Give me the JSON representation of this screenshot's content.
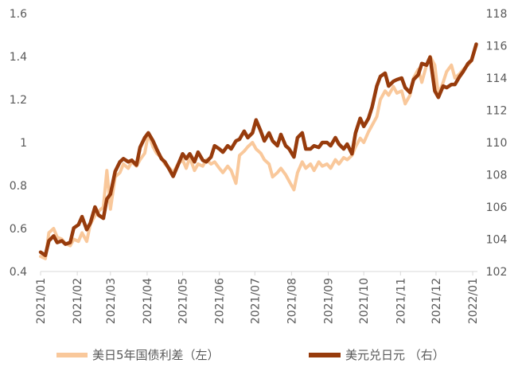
{
  "chart_data": {
    "type": "line",
    "title": "",
    "x_tick_labels": [
      "2021/01",
      "2021/02",
      "2021/03",
      "2021/04",
      "2021/05",
      "2021/06",
      "2021/07",
      "2021/08",
      "2021/09",
      "2021/10",
      "2021/11",
      "2021/12",
      "2022/01"
    ],
    "y_left": {
      "range": [
        0.4,
        1.6
      ],
      "ticks": [
        "0.4",
        "0.6",
        "0.8",
        "1",
        "1.2",
        "1.4",
        "1.6"
      ]
    },
    "y_right": {
      "range": [
        102,
        118
      ],
      "ticks": [
        "102",
        "104",
        "106",
        "108",
        "110",
        "112",
        "114",
        "116",
        "118"
      ]
    },
    "grid": false,
    "legend_position": "bottom",
    "series": [
      {
        "name": "美日5年国债利差（左）",
        "axis": "left",
        "color": "#F9C89B",
        "points": [
          [
            "2021-01-01",
            0.47
          ],
          [
            "2021-01-05",
            0.46
          ],
          [
            "2021-01-08",
            0.58
          ],
          [
            "2021-01-12",
            0.6
          ],
          [
            "2021-01-15",
            0.56
          ],
          [
            "2021-01-19",
            0.55
          ],
          [
            "2021-01-22",
            0.53
          ],
          [
            "2021-01-26",
            0.52
          ],
          [
            "2021-01-29",
            0.55
          ],
          [
            "2021-02-02",
            0.54
          ],
          [
            "2021-02-05",
            0.58
          ],
          [
            "2021-02-09",
            0.54
          ],
          [
            "2021-02-12",
            0.62
          ],
          [
            "2021-02-16",
            0.66
          ],
          [
            "2021-02-19",
            0.68
          ],
          [
            "2021-02-23",
            0.7
          ],
          [
            "2021-02-26",
            0.87
          ],
          [
            "2021-03-01",
            0.69
          ],
          [
            "2021-03-05",
            0.84
          ],
          [
            "2021-03-09",
            0.86
          ],
          [
            "2021-03-12",
            0.9
          ],
          [
            "2021-03-16",
            0.88
          ],
          [
            "2021-03-19",
            0.91
          ],
          [
            "2021-03-23",
            0.89
          ],
          [
            "2021-03-26",
            0.92
          ],
          [
            "2021-03-30",
            0.95
          ],
          [
            "2021-04-02",
            1.04
          ],
          [
            "2021-04-06",
            0.98
          ],
          [
            "2021-04-09",
            0.95
          ],
          [
            "2021-04-13",
            0.93
          ],
          [
            "2021-04-16",
            0.9
          ],
          [
            "2021-04-20",
            0.88
          ],
          [
            "2021-04-23",
            0.86
          ],
          [
            "2021-04-27",
            0.9
          ],
          [
            "2021-05-01",
            0.92
          ],
          [
            "2021-05-04",
            0.88
          ],
          [
            "2021-05-07",
            0.93
          ],
          [
            "2021-05-11",
            0.87
          ],
          [
            "2021-05-14",
            0.9
          ],
          [
            "2021-05-18",
            0.89
          ],
          [
            "2021-05-21",
            0.92
          ],
          [
            "2021-05-25",
            0.9
          ],
          [
            "2021-05-28",
            0.91
          ],
          [
            "2021-06-01",
            0.88
          ],
          [
            "2021-06-04",
            0.86
          ],
          [
            "2021-06-08",
            0.89
          ],
          [
            "2021-06-11",
            0.87
          ],
          [
            "2021-06-15",
            0.81
          ],
          [
            "2021-06-18",
            0.94
          ],
          [
            "2021-06-22",
            0.96
          ],
          [
            "2021-06-25",
            0.98
          ],
          [
            "2021-06-29",
            1.0
          ],
          [
            "2021-07-02",
            0.97
          ],
          [
            "2021-07-06",
            0.95
          ],
          [
            "2021-07-09",
            0.92
          ],
          [
            "2021-07-13",
            0.9
          ],
          [
            "2021-07-16",
            0.84
          ],
          [
            "2021-07-20",
            0.86
          ],
          [
            "2021-07-23",
            0.88
          ],
          [
            "2021-07-27",
            0.85
          ],
          [
            "2021-07-30",
            0.82
          ],
          [
            "2021-08-03",
            0.78
          ],
          [
            "2021-08-06",
            0.86
          ],
          [
            "2021-08-10",
            0.91
          ],
          [
            "2021-08-13",
            0.88
          ],
          [
            "2021-08-17",
            0.9
          ],
          [
            "2021-08-20",
            0.87
          ],
          [
            "2021-08-24",
            0.91
          ],
          [
            "2021-08-27",
            0.89
          ],
          [
            "2021-08-31",
            0.9
          ],
          [
            "2021-09-03",
            0.88
          ],
          [
            "2021-09-07",
            0.92
          ],
          [
            "2021-09-10",
            0.9
          ],
          [
            "2021-09-14",
            0.93
          ],
          [
            "2021-09-17",
            0.92
          ],
          [
            "2021-09-21",
            0.94
          ],
          [
            "2021-09-24",
            0.98
          ],
          [
            "2021-09-28",
            1.02
          ],
          [
            "2021-10-01",
            1.0
          ],
          [
            "2021-10-05",
            1.05
          ],
          [
            "2021-10-08",
            1.08
          ],
          [
            "2021-10-12",
            1.12
          ],
          [
            "2021-10-15",
            1.2
          ],
          [
            "2021-10-19",
            1.24
          ],
          [
            "2021-10-22",
            1.22
          ],
          [
            "2021-10-26",
            1.26
          ],
          [
            "2021-10-29",
            1.23
          ],
          [
            "2021-11-02",
            1.24
          ],
          [
            "2021-11-05",
            1.18
          ],
          [
            "2021-11-09",
            1.22
          ],
          [
            "2021-11-12",
            1.3
          ],
          [
            "2021-11-16",
            1.34
          ],
          [
            "2021-11-19",
            1.28
          ],
          [
            "2021-11-23",
            1.36
          ],
          [
            "2021-11-26",
            1.4
          ],
          [
            "2021-11-30",
            1.36
          ],
          [
            "2021-12-03",
            1.22
          ],
          [
            "2021-12-07",
            1.28
          ],
          [
            "2021-12-10",
            1.33
          ],
          [
            "2021-12-14",
            1.36
          ],
          [
            "2021-12-17",
            1.3
          ],
          [
            "2021-12-21",
            1.32
          ],
          [
            "2021-12-24",
            1.34
          ],
          [
            "2021-12-28",
            1.36
          ],
          [
            "2021-12-31",
            1.38
          ],
          [
            "2022-01-04",
            1.45
          ]
        ]
      },
      {
        "name": "美元兑日元 （右）",
        "axis": "right",
        "color": "#973B0C",
        "points": [
          [
            "2021-01-01",
            103.2
          ],
          [
            "2021-01-05",
            103.0
          ],
          [
            "2021-01-08",
            103.9
          ],
          [
            "2021-01-12",
            104.2
          ],
          [
            "2021-01-15",
            103.8
          ],
          [
            "2021-01-19",
            103.9
          ],
          [
            "2021-01-22",
            103.7
          ],
          [
            "2021-01-26",
            103.8
          ],
          [
            "2021-01-29",
            104.7
          ],
          [
            "2021-02-02",
            104.9
          ],
          [
            "2021-02-05",
            105.4
          ],
          [
            "2021-02-09",
            104.6
          ],
          [
            "2021-02-12",
            105.0
          ],
          [
            "2021-02-16",
            106.0
          ],
          [
            "2021-02-19",
            105.5
          ],
          [
            "2021-02-23",
            105.3
          ],
          [
            "2021-02-26",
            106.5
          ],
          [
            "2021-03-01",
            106.8
          ],
          [
            "2021-03-05",
            108.2
          ],
          [
            "2021-03-09",
            108.8
          ],
          [
            "2021-03-12",
            109.0
          ],
          [
            "2021-03-16",
            108.8
          ],
          [
            "2021-03-19",
            108.9
          ],
          [
            "2021-03-23",
            108.6
          ],
          [
            "2021-03-26",
            109.7
          ],
          [
            "2021-03-30",
            110.3
          ],
          [
            "2021-04-02",
            110.6
          ],
          [
            "2021-04-06",
            110.1
          ],
          [
            "2021-04-09",
            109.6
          ],
          [
            "2021-04-13",
            109.0
          ],
          [
            "2021-04-16",
            108.8
          ],
          [
            "2021-04-20",
            108.3
          ],
          [
            "2021-04-23",
            107.9
          ],
          [
            "2021-04-27",
            108.6
          ],
          [
            "2021-05-01",
            109.3
          ],
          [
            "2021-05-04",
            109.0
          ],
          [
            "2021-05-07",
            109.3
          ],
          [
            "2021-05-11",
            108.8
          ],
          [
            "2021-05-14",
            109.4
          ],
          [
            "2021-05-18",
            108.9
          ],
          [
            "2021-05-21",
            108.8
          ],
          [
            "2021-05-25",
            109.1
          ],
          [
            "2021-05-28",
            109.8
          ],
          [
            "2021-06-01",
            109.6
          ],
          [
            "2021-06-04",
            109.4
          ],
          [
            "2021-06-08",
            109.8
          ],
          [
            "2021-06-11",
            109.6
          ],
          [
            "2021-06-15",
            110.1
          ],
          [
            "2021-06-18",
            110.2
          ],
          [
            "2021-06-22",
            110.7
          ],
          [
            "2021-06-25",
            110.3
          ],
          [
            "2021-06-29",
            110.6
          ],
          [
            "2021-07-02",
            111.4
          ],
          [
            "2021-07-06",
            110.7
          ],
          [
            "2021-07-09",
            110.1
          ],
          [
            "2021-07-13",
            110.6
          ],
          [
            "2021-07-16",
            110.1
          ],
          [
            "2021-07-20",
            109.8
          ],
          [
            "2021-07-23",
            110.5
          ],
          [
            "2021-07-27",
            109.8
          ],
          [
            "2021-07-30",
            109.6
          ],
          [
            "2021-08-03",
            109.1
          ],
          [
            "2021-08-06",
            110.3
          ],
          [
            "2021-08-10",
            110.6
          ],
          [
            "2021-08-13",
            109.6
          ],
          [
            "2021-08-17",
            109.6
          ],
          [
            "2021-08-20",
            109.8
          ],
          [
            "2021-08-24",
            109.7
          ],
          [
            "2021-08-27",
            110.0
          ],
          [
            "2021-08-31",
            110.0
          ],
          [
            "2021-09-03",
            109.8
          ],
          [
            "2021-09-07",
            110.3
          ],
          [
            "2021-09-10",
            109.9
          ],
          [
            "2021-09-14",
            109.6
          ],
          [
            "2021-09-17",
            109.9
          ],
          [
            "2021-09-21",
            109.3
          ],
          [
            "2021-09-24",
            110.6
          ],
          [
            "2021-09-28",
            111.5
          ],
          [
            "2021-10-01",
            111.0
          ],
          [
            "2021-10-05",
            111.5
          ],
          [
            "2021-10-08",
            112.2
          ],
          [
            "2021-10-12",
            113.5
          ],
          [
            "2021-10-15",
            114.1
          ],
          [
            "2021-10-19",
            114.3
          ],
          [
            "2021-10-22",
            113.5
          ],
          [
            "2021-10-26",
            113.8
          ],
          [
            "2021-10-29",
            113.9
          ],
          [
            "2021-11-02",
            114.0
          ],
          [
            "2021-11-05",
            113.4
          ],
          [
            "2021-11-09",
            113.1
          ],
          [
            "2021-11-12",
            113.9
          ],
          [
            "2021-11-16",
            114.2
          ],
          [
            "2021-11-19",
            114.9
          ],
          [
            "2021-11-23",
            114.8
          ],
          [
            "2021-11-26",
            115.3
          ],
          [
            "2021-11-30",
            113.2
          ],
          [
            "2021-12-03",
            112.8
          ],
          [
            "2021-12-07",
            113.5
          ],
          [
            "2021-12-10",
            113.4
          ],
          [
            "2021-12-14",
            113.6
          ],
          [
            "2021-12-17",
            113.6
          ],
          [
            "2021-12-21",
            114.1
          ],
          [
            "2021-12-24",
            114.4
          ],
          [
            "2021-12-28",
            114.9
          ],
          [
            "2021-12-31",
            115.1
          ],
          [
            "2022-01-04",
            116.1
          ]
        ]
      }
    ]
  }
}
